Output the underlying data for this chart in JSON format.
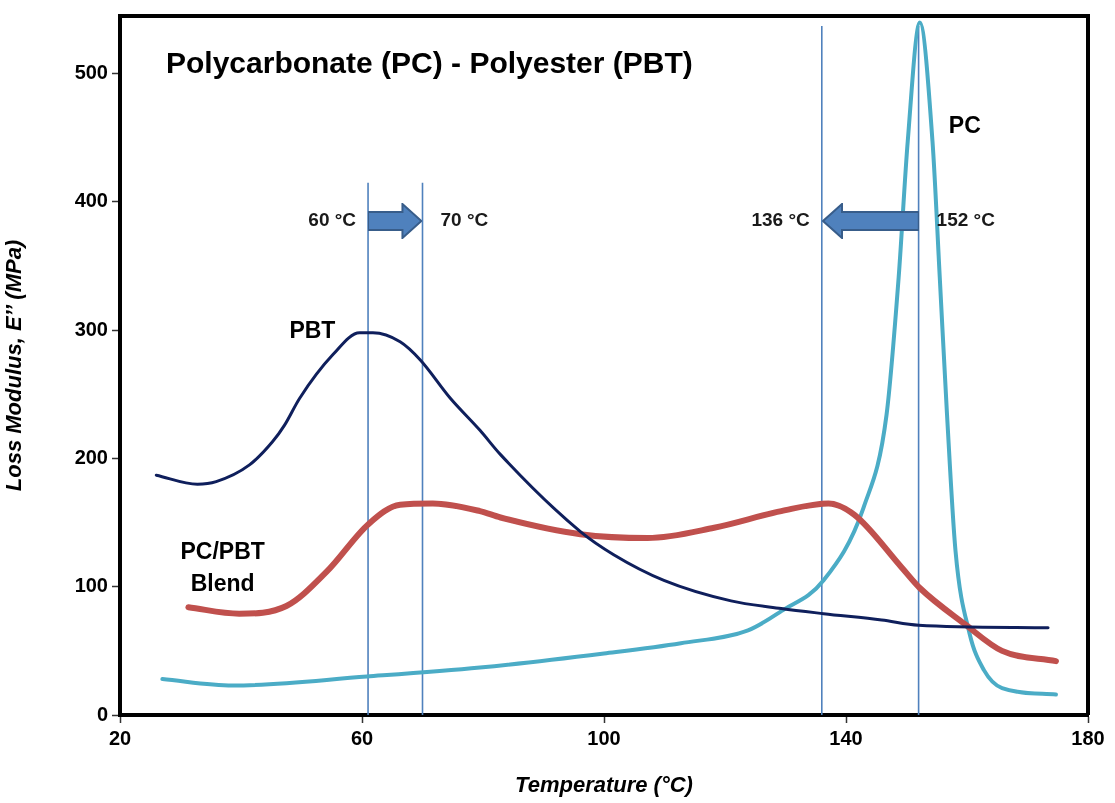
{
  "chart_data": {
    "type": "line",
    "title": "Polycarbonate (PC) - Polyester (PBT)",
    "xlabel": "Temperature (°C)",
    "ylabel": "Loss Modulus, E’’ (MPa)",
    "xlim": [
      20,
      180
    ],
    "xticks": [
      20,
      60,
      100,
      140,
      180
    ],
    "ylim": [
      0,
      545
    ],
    "yticks": [
      0,
      100,
      200,
      300,
      400,
      500
    ],
    "grid": false,
    "legend": false,
    "marker": "none",
    "line_style": "solid",
    "series": [
      {
        "name": "PBT",
        "color": "#0f1f5c",
        "x": [
          26,
          32.8,
          35.9,
          41.4,
          45.2,
          47.2,
          49.7,
          55.2,
          59.6,
          61.8,
          66.3,
          69.6,
          74.6,
          79.5,
          82.9,
          96.1,
          101.6,
          109.9,
          121,
          129.3,
          136.3,
          145.9,
          152,
          173.4
        ],
        "values": [
          187,
          180,
          182,
          195,
          213,
          226,
          247,
          281,
          298,
          298,
          291,
          277,
          247,
          222,
          203,
          143,
          125,
          105,
          89,
          83,
          79,
          74,
          70,
          68
        ]
      },
      {
        "name": "PC/PBT Blend",
        "color": "#c0504d",
        "x": [
          31.3,
          39.7,
          47.5,
          54.2,
          61.1,
          66.3,
          71.7,
          79.5,
          82.9,
          96.1,
          107.2,
          118.2,
          129.3,
          137.1,
          141.4,
          149.2,
          152.2,
          159.6,
          165.8,
          174.7
        ],
        "values": [
          84,
          79,
          85,
          112,
          149,
          164,
          165,
          159,
          154,
          141,
          138,
          146,
          159,
          165,
          156,
          115,
          99,
          71,
          50,
          42
        ]
      },
      {
        "name": "PC",
        "color": "#4bacc6",
        "x": [
          27,
          38.6,
          60.8,
          79.5,
          100,
          112.7,
          123.8,
          129.3,
          136.3,
          143,
          146.7,
          148.7,
          150.2,
          152.2,
          154.3,
          155.5,
          156.7,
          158.1,
          160.4,
          162.8,
          165.8,
          174.7
        ],
        "values": [
          28,
          23,
          30,
          37,
          48,
          56,
          66,
          81,
          105,
          163,
          234,
          341,
          447,
          540,
          447,
          341,
          234,
          128,
          64,
          35,
          21,
          16
        ]
      }
    ],
    "ref_lines": [
      {
        "axis": "x",
        "value": 61,
        "label": "60 °C",
        "color": "#4f81bd"
      },
      {
        "axis": "x",
        "value": 70,
        "label": "70 °C",
        "color": "#4f81bd"
      },
      {
        "axis": "x",
        "value": 136,
        "label": "136 °C",
        "color": "#4f81bd"
      },
      {
        "axis": "x",
        "value": 152,
        "label": "152 °C",
        "color": "#4f81bd"
      }
    ]
  }
}
